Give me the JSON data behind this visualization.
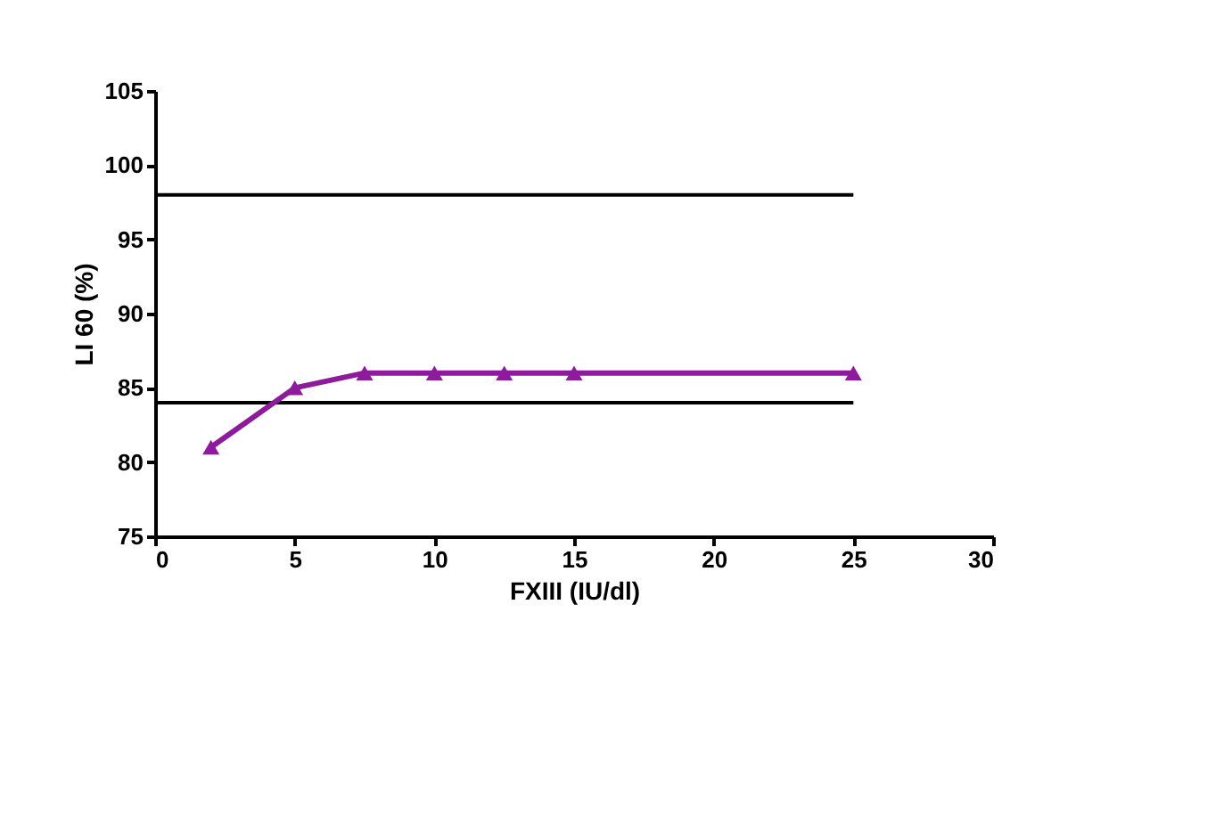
{
  "chart_data": {
    "type": "line",
    "xlabel": "FXIII (IU/dl)",
    "ylabel": "LI 60 (%)",
    "x": [
      2,
      5,
      7.5,
      10,
      12.5,
      15,
      25
    ],
    "series": [
      {
        "color": "#8e1b9c",
        "values": [
          81,
          85,
          86,
          86,
          86,
          86,
          86
        ]
      }
    ],
    "xlim": [
      0,
      30
    ],
    "xticks": [
      0,
      5,
      10,
      15,
      20,
      25,
      30
    ],
    "ylim": [
      75,
      105
    ],
    "yticks": [
      75,
      80,
      85,
      90,
      95,
      100,
      105
    ],
    "ref_lines": [
      {
        "axis": "y",
        "value": 98
      },
      {
        "axis": "y",
        "value": 84
      }
    ],
    "marker": "triangle",
    "line_style": "solid",
    "grid": false
  }
}
